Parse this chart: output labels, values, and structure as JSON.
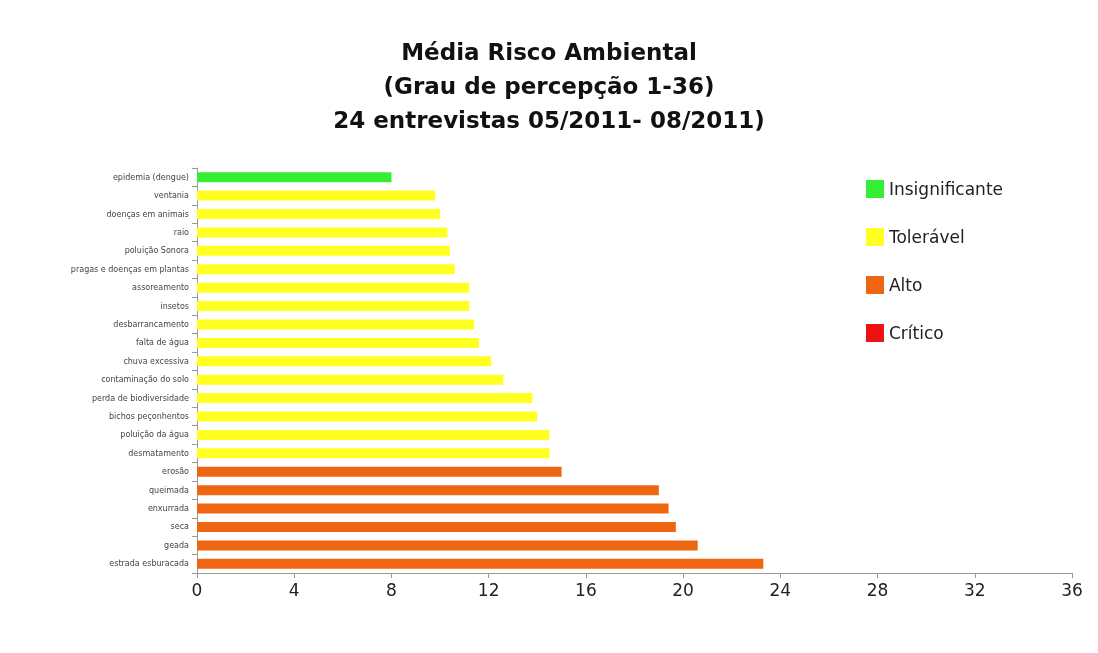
{
  "chart_data": {
    "type": "bar",
    "orientation": "horizontal",
    "stacked": true,
    "title": "Média Risco Ambiental\n(Grau de percepção 1-36)\n24 entrevistas 05/2011- 08/2011)",
    "categories": [
      "epidemia (dengue)",
      "ventania",
      "doenças em animais",
      "raio",
      "poluição Sonora",
      "pragas e doenças em plantas",
      "assoreamento",
      "insetos",
      "desbarrancamento",
      "falta de água",
      "chuva excessiva",
      "contaminação do solo",
      "perda de biodiversidade",
      "bichos peçonhentos",
      "poluição da água",
      "desmatamento",
      "erosão",
      "queimada",
      "enxurrada",
      "seca",
      "geada",
      "estrada esburacada"
    ],
    "series": [
      {
        "name": "Insignificante",
        "color": "#33ee33",
        "values": [
          8.0,
          null,
          null,
          null,
          null,
          null,
          null,
          null,
          null,
          null,
          null,
          null,
          null,
          null,
          null,
          null,
          null,
          null,
          null,
          null,
          null,
          null
        ]
      },
      {
        "name": "Tolerável",
        "color": "#ffff22",
        "values": [
          null,
          9.8,
          10.0,
          10.3,
          10.4,
          10.6,
          11.2,
          11.2,
          11.4,
          11.6,
          12.1,
          12.6,
          13.8,
          14.0,
          14.5,
          14.5,
          null,
          null,
          null,
          null,
          null,
          null
        ]
      },
      {
        "name": "Alto",
        "color": "#ee6611",
        "values": [
          null,
          null,
          null,
          null,
          null,
          null,
          null,
          null,
          null,
          null,
          null,
          null,
          null,
          null,
          null,
          null,
          15.0,
          19.0,
          19.4,
          19.7,
          20.6,
          23.3
        ]
      },
      {
        "name": "Crítico",
        "color": "#ee1111",
        "values": [
          null,
          null,
          null,
          null,
          null,
          null,
          null,
          null,
          null,
          null,
          null,
          null,
          null,
          null,
          null,
          null,
          null,
          null,
          null,
          null,
          null,
          null
        ]
      }
    ],
    "xlim": [
      0,
      36
    ],
    "xticks": [
      0,
      4,
      8,
      12,
      16,
      20,
      24,
      28,
      32,
      36
    ],
    "grid": false,
    "legend": "top right"
  }
}
